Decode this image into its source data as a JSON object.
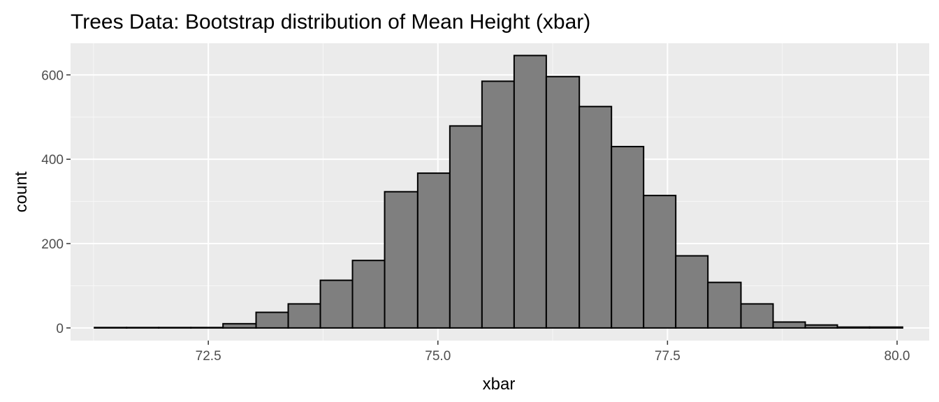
{
  "chart_data": {
    "type": "bar",
    "subtype": "histogram",
    "title": "Trees Data: Bootstrap distribution of Mean Height (xbar)",
    "xlabel": "xbar",
    "ylabel": "count",
    "xlim": [
      71.0,
      80.35
    ],
    "ylim": [
      -30,
      675
    ],
    "x_ticks": [
      72.5,
      75.0,
      77.5,
      80.0
    ],
    "x_tick_labels": [
      "72.5",
      "75.0",
      "77.5",
      "80.0"
    ],
    "y_ticks": [
      0,
      200,
      400,
      600
    ],
    "y_tick_labels": [
      "0",
      "200",
      "400",
      "600"
    ],
    "bin_width": 0.352,
    "bins": [
      {
        "x_start": 71.26,
        "x_end": 71.61,
        "count": 1
      },
      {
        "x_start": 71.61,
        "x_end": 71.96,
        "count": 1
      },
      {
        "x_start": 71.96,
        "x_end": 72.31,
        "count": 1
      },
      {
        "x_start": 72.31,
        "x_end": 72.66,
        "count": 1
      },
      {
        "x_start": 72.66,
        "x_end": 73.02,
        "count": 10
      },
      {
        "x_start": 73.02,
        "x_end": 73.37,
        "count": 37
      },
      {
        "x_start": 73.37,
        "x_end": 73.72,
        "count": 57
      },
      {
        "x_start": 73.72,
        "x_end": 74.07,
        "count": 113
      },
      {
        "x_start": 74.07,
        "x_end": 74.42,
        "count": 160
      },
      {
        "x_start": 74.42,
        "x_end": 74.78,
        "count": 323
      },
      {
        "x_start": 74.78,
        "x_end": 75.13,
        "count": 367
      },
      {
        "x_start": 75.13,
        "x_end": 75.48,
        "count": 479
      },
      {
        "x_start": 75.48,
        "x_end": 75.83,
        "count": 585
      },
      {
        "x_start": 75.83,
        "x_end": 76.18,
        "count": 646
      },
      {
        "x_start": 76.18,
        "x_end": 76.54,
        "count": 596
      },
      {
        "x_start": 76.54,
        "x_end": 76.89,
        "count": 525
      },
      {
        "x_start": 76.89,
        "x_end": 77.24,
        "count": 430
      },
      {
        "x_start": 77.24,
        "x_end": 77.59,
        "count": 314
      },
      {
        "x_start": 77.59,
        "x_end": 77.94,
        "count": 171
      },
      {
        "x_start": 77.94,
        "x_end": 78.3,
        "count": 108
      },
      {
        "x_start": 78.3,
        "x_end": 78.65,
        "count": 57
      },
      {
        "x_start": 78.65,
        "x_end": 79.0,
        "count": 14
      },
      {
        "x_start": 79.0,
        "x_end": 79.35,
        "count": 7
      },
      {
        "x_start": 79.35,
        "x_end": 79.7,
        "count": 2
      },
      {
        "x_start": 79.7,
        "x_end": 80.06,
        "count": 2
      }
    ],
    "grid": true,
    "colors": {
      "panel_background": "#ebebeb",
      "grid_major": "#ffffff",
      "grid_minor": "#f7f7f7",
      "bar_fill": "#7f7f7f",
      "bar_outline": "#000000"
    }
  }
}
